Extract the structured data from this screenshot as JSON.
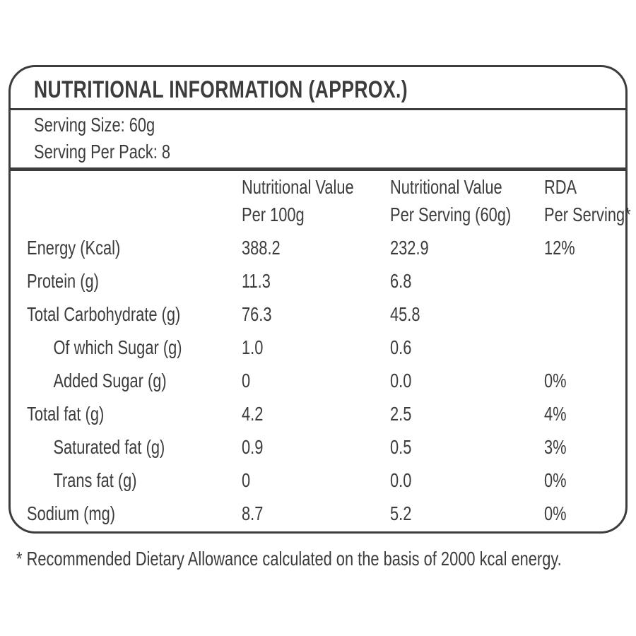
{
  "label": {
    "title": "NUTRITIONAL INFORMATION (APPROX.)",
    "serving": {
      "size": "Serving Size: 60g",
      "per_pack": "Serving Per Pack: 8"
    },
    "table": {
      "columns": [
        {
          "l1": "",
          "l2": ""
        },
        {
          "l1": "Nutritional Value",
          "l2": "Per 100g"
        },
        {
          "l1": "Nutritional Value",
          "l2": "Per Serving (60g)"
        },
        {
          "l1": "RDA",
          "l2": "Per Serving*"
        }
      ],
      "rows": [
        {
          "label": "Energy (Kcal)",
          "per100": "388.2",
          "perServing": "232.9",
          "rda": "12%"
        },
        {
          "label": "Protein (g)",
          "per100": "11.3",
          "perServing": "6.8",
          "rda": ""
        },
        {
          "label": "Total Carbohydrate (g)",
          "per100": "76.3",
          "perServing": "45.8",
          "rda": ""
        },
        {
          "label": "Of which Sugar (g)",
          "per100": "1.0",
          "perServing": "0.6",
          "rda": ""
        },
        {
          "label": "Added Sugar (g)",
          "per100": "0",
          "perServing": "0.0",
          "rda": "0%"
        },
        {
          "label": "Total fat (g)",
          "per100": "4.2",
          "perServing": "2.5",
          "rda": "4%"
        },
        {
          "label": "Saturated fat (g)",
          "per100": "0.9",
          "perServing": "0.5",
          "rda": "3%"
        },
        {
          "label": "Trans fat (g)",
          "per100": "0",
          "perServing": "0.0",
          "rda": "0%"
        },
        {
          "label": "Sodium (mg)",
          "per100": "8.7",
          "perServing": "5.2",
          "rda": "0%"
        }
      ]
    },
    "footnote": "* Recommended Dietary Allowance calculated on the basis of 2000 kcal energy.",
    "colors": {
      "text": "#3c3c3c",
      "border": "#3c3c3c",
      "background": "#ffffff"
    }
  }
}
